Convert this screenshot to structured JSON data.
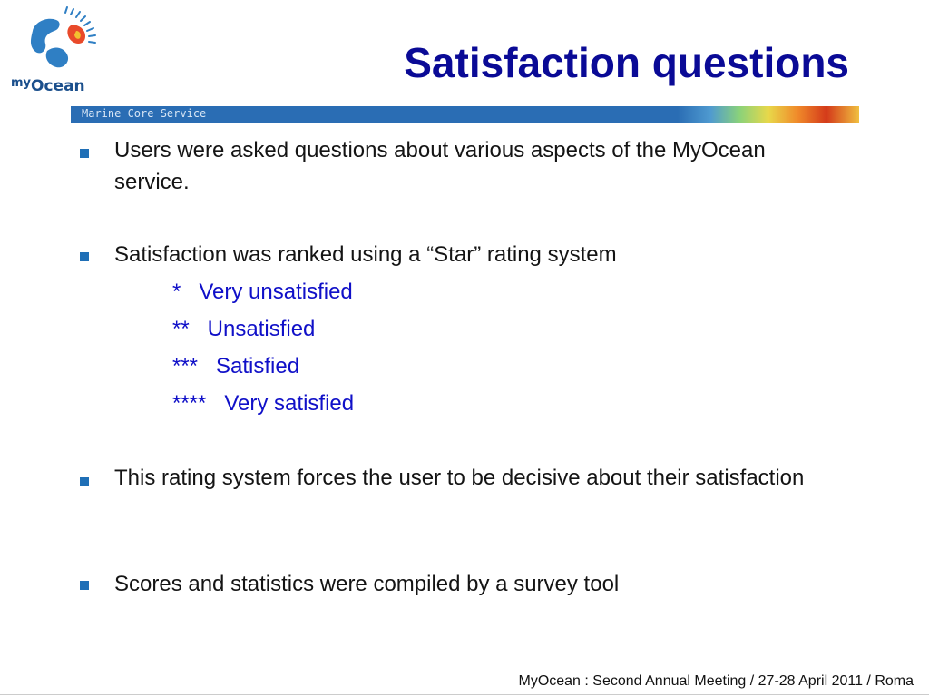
{
  "logo": {
    "brand_prefix": "my",
    "brand_name": "Ocean"
  },
  "header": {
    "title": "Satisfaction questions",
    "banner_text": "Marine Core Service"
  },
  "bullets": [
    {
      "text": "Users were asked questions about various aspects of the MyOcean service."
    },
    {
      "text": "Satisfaction was ranked using a “Star” rating system"
    },
    {
      "text": "This rating system forces the user to be decisive about their satisfaction"
    },
    {
      "text": "Scores and statistics were compiled by a survey tool"
    }
  ],
  "ratings": [
    {
      "label": "*   Very unsatisfied"
    },
    {
      "label": "**   Unsatisfied"
    },
    {
      "label": "***   Satisfied"
    },
    {
      "label": "****   Very satisfied"
    }
  ],
  "footer": {
    "text": "MyOcean : Second Annual Meeting / 27-28 April 2011 / Roma"
  },
  "colors": {
    "title": "#0a0a96",
    "bullet": "#1f6fb6",
    "rating_text": "#1010c8",
    "banner": "#2a6db4"
  }
}
